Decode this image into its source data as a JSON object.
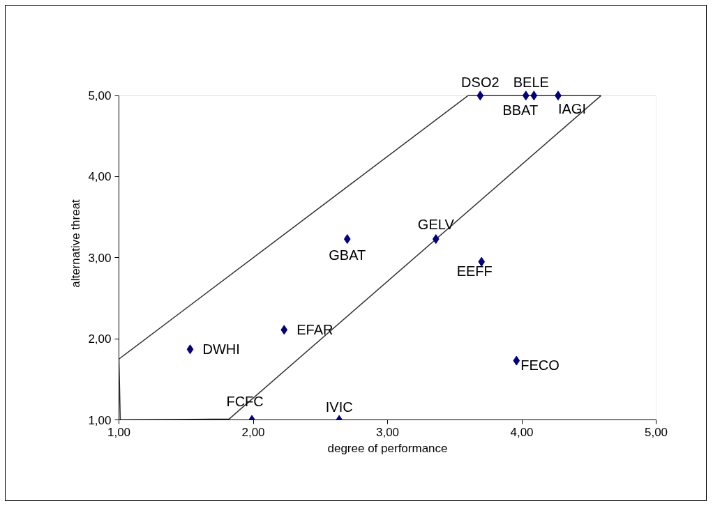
{
  "chart_data": {
    "type": "scatter",
    "xlabel": "degree of performance",
    "ylabel": "alternative threat",
    "xlim": [
      1,
      5
    ],
    "ylim": [
      1,
      5
    ],
    "xticks": [
      {
        "value": 1,
        "label": "1,00"
      },
      {
        "value": 2,
        "label": "2,00"
      },
      {
        "value": 3,
        "label": "3,00"
      },
      {
        "value": 4,
        "label": "4,00"
      },
      {
        "value": 5,
        "label": "5,00"
      }
    ],
    "yticks": [
      {
        "value": 1,
        "label": "1,00"
      },
      {
        "value": 2,
        "label": "2,00"
      },
      {
        "value": 3,
        "label": "3,00"
      },
      {
        "value": 4,
        "label": "4,00"
      },
      {
        "value": 5,
        "label": "5,00"
      }
    ],
    "grid": false,
    "marker": "diamond",
    "series": [
      {
        "type": "line",
        "color": "#333333",
        "line_style": "solid",
        "marker": "none",
        "x": [
          1,
          1.01,
          1.82,
          4.59
        ],
        "values": [
          1.75,
          1,
          1.01,
          5
        ]
      },
      {
        "type": "line",
        "color": "#333333",
        "line_style": "solid",
        "marker": "none",
        "x": [
          1,
          3.6,
          4.59
        ],
        "values": [
          1.75,
          5,
          5
        ]
      },
      {
        "color": "#000080",
        "x": [
          3.69,
          4.09,
          4.03,
          4.27,
          2.7,
          3.36,
          3.7,
          2.23,
          1.53,
          3.96,
          1.99,
          2.64
        ],
        "values": [
          5,
          5,
          5,
          5,
          3.23,
          3.23,
          2.95,
          2.11,
          1.87,
          1.73,
          1,
          1
        ]
      }
    ],
    "annotations": [
      {
        "text": "DSO2",
        "x": 3.69,
        "y": 5
      },
      {
        "text": "BELE",
        "x": 4.09,
        "y": 5
      },
      {
        "text": "BBAT",
        "x": 4.03,
        "y": 5
      },
      {
        "text": "IAGI",
        "x": 4.27,
        "y": 5
      },
      {
        "text": "GBAT",
        "x": 2.7,
        "y": 3.23
      },
      {
        "text": "GELV",
        "x": 3.36,
        "y": 3.23
      },
      {
        "text": "EEFF",
        "x": 3.7,
        "y": 2.95
      },
      {
        "text": "EFAR",
        "x": 2.23,
        "y": 2.11
      },
      {
        "text": "DWHI",
        "x": 1.53,
        "y": 1.87
      },
      {
        "text": "FECO",
        "x": 3.96,
        "y": 1.73
      },
      {
        "text": "FCFC",
        "x": 1.99,
        "y": 1
      },
      {
        "text": "IVIC",
        "x": 2.64,
        "y": 1
      }
    ]
  }
}
